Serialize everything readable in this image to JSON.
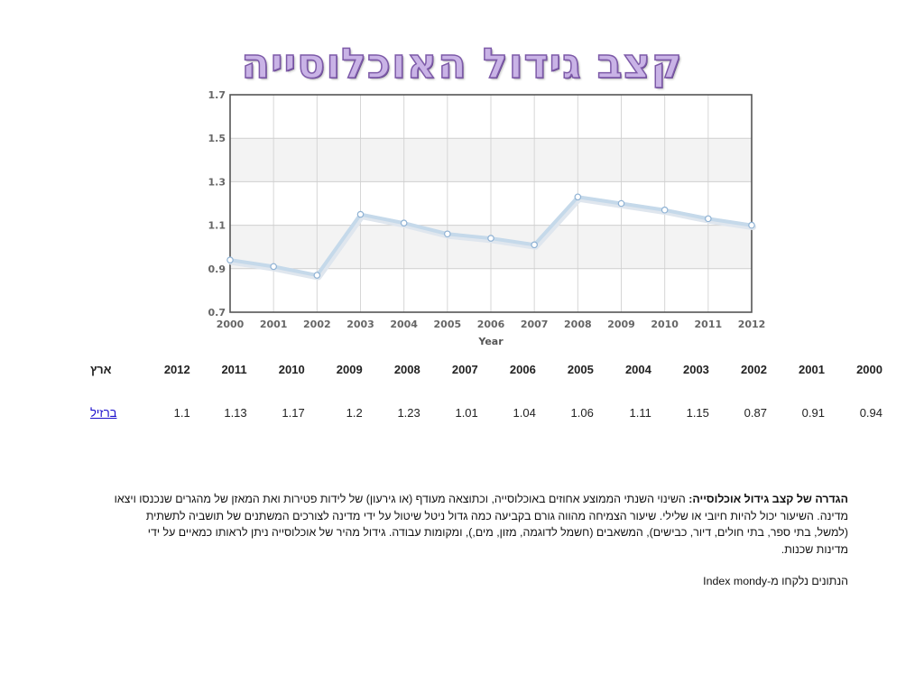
{
  "title": "קצב גידול האוכלוסייה",
  "chart_data": {
    "type": "line",
    "x": [
      "2000",
      "2001",
      "2002",
      "2003",
      "2004",
      "2005",
      "2006",
      "2007",
      "2008",
      "2009",
      "2010",
      "2011",
      "2012"
    ],
    "series": [
      {
        "values": [
          0.94,
          0.91,
          0.87,
          1.15,
          1.11,
          1.06,
          1.04,
          1.01,
          1.23,
          1.2,
          1.17,
          1.13,
          1.1
        ]
      }
    ],
    "ylim": [
      0.7,
      1.7
    ],
    "yticks": [
      "0.7",
      "0.9",
      "1.1",
      "1.3",
      "1.5",
      "1.7"
    ],
    "xlabel": "Year",
    "ylabel": "",
    "grid": true,
    "line_color": "#c5d9ea",
    "marker_color": "#ffffff"
  },
  "table": {
    "header_country": "ארץ",
    "years": [
      "2000",
      "2001",
      "2002",
      "2003",
      "2004",
      "2005",
      "2006",
      "2007",
      "2008",
      "2009",
      "2010",
      "2011",
      "2012"
    ],
    "rows": [
      {
        "country": "ברזיל",
        "values": [
          "0.94",
          "0.91",
          "0.87",
          "1.15",
          "1.11",
          "1.06",
          "1.04",
          "1.01",
          "1.23",
          "1.2",
          "1.17",
          "1.13",
          "1.1"
        ]
      }
    ]
  },
  "definition": {
    "term": "הגדרה של קצב גידול אוכלוסייה:",
    "text": " השינוי השנתי הממוצע אחוזים באוכלוסייה, וכתוצאה מעודף (או גירעון) של לידות פטירות ואת המאזן של מהגרים שנכנסו ויצאו מדינה. השיעור יכול להיות חיובי או שלילי. שיעור הצמיחה מהווה גורם בקביעה כמה גדול ניטל שיטול על ידי מדינה לצורכים המשתנים של תושביה לתשתית (למשל, בתי ספר, בתי חולים, דיור, כבישים), המשאבים (חשמל לדוגמה, מזון, מים,), ומקומות עבודה. גידול מהיר של אוכלוסייה ניתן לראותו כמאיים על ידי מדינות שכנות.",
    "source": "הנתונים נלקחו מ-Index mondy"
  }
}
